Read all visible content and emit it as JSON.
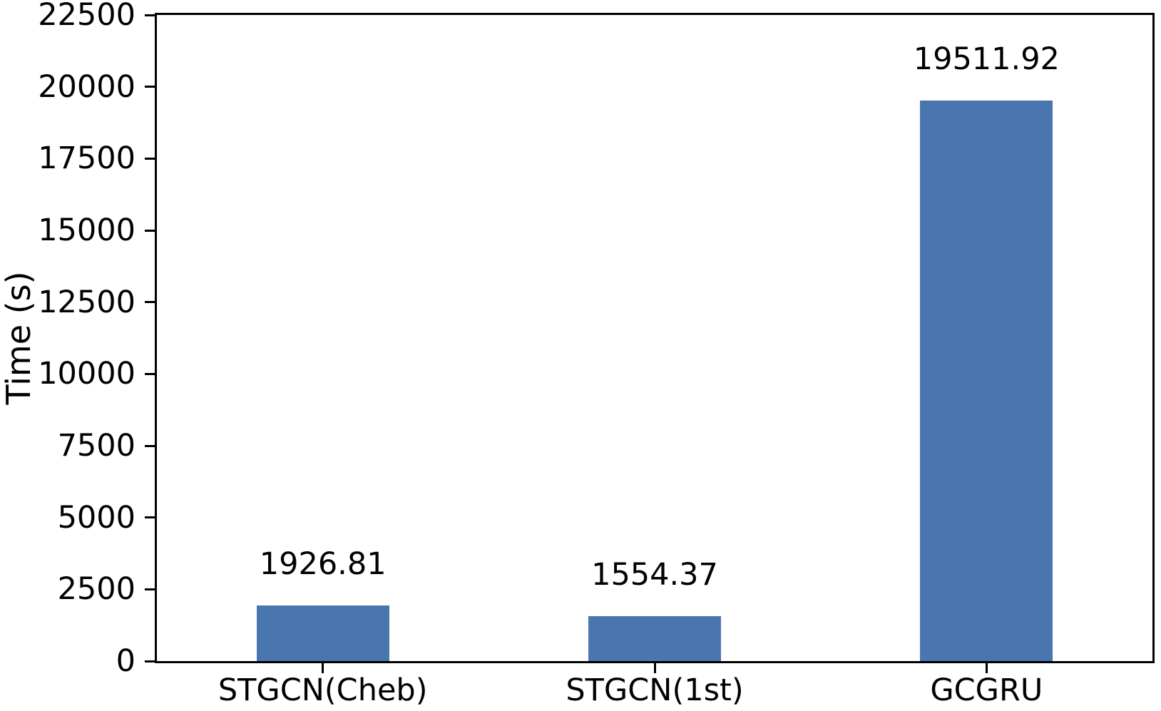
{
  "chart_data": {
    "type": "bar",
    "categories": [
      "STGCN(Cheb)",
      "STGCN(1st)",
      "GCGRU"
    ],
    "values": [
      1926.81,
      1554.37,
      19511.92
    ],
    "bar_value_labels": [
      "1926.81",
      "1554.37",
      "19511.92"
    ],
    "title": "",
    "xlabel": "",
    "ylabel": "Time (s)",
    "ylim": [
      0,
      22500
    ],
    "yticks": [
      0,
      2500,
      5000,
      7500,
      10000,
      12500,
      15000,
      17500,
      20000,
      22500
    ],
    "grid": false,
    "legend_position": "none",
    "bar_color": "#4a76b0",
    "axis_color": "#000000",
    "text_color": "#000000",
    "background_color": "#ffffff"
  }
}
